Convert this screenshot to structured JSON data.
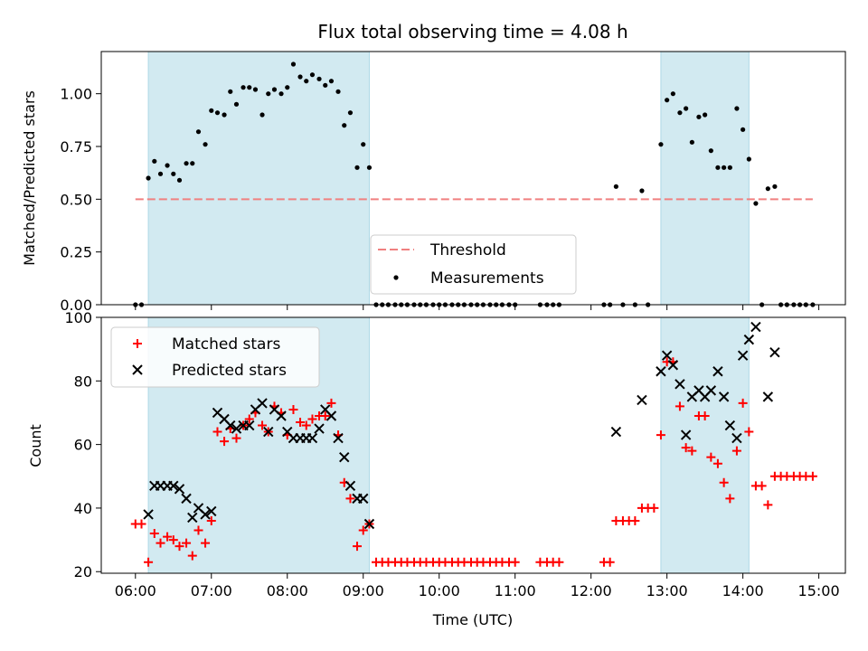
{
  "title": "Flux total observing time = 4.08 h",
  "x_axis": {
    "label": "Time (UTC)",
    "ticks": [
      {
        "value": 6,
        "label": "06:00"
      },
      {
        "value": 7,
        "label": "07:00"
      },
      {
        "value": 8,
        "label": "08:00"
      },
      {
        "value": 9,
        "label": "09:00"
      },
      {
        "value": 10,
        "label": "10:00"
      },
      {
        "value": 11,
        "label": "11:00"
      },
      {
        "value": 12,
        "label": "12:00"
      },
      {
        "value": 13,
        "label": "13:00"
      },
      {
        "value": 14,
        "label": "14:00"
      },
      {
        "value": 15,
        "label": "15:00"
      }
    ]
  },
  "colors": {
    "shade": "#add8e6",
    "threshold": "#f08080",
    "matched": "#ff0000",
    "predicted": "#000000",
    "measurement": "#000000"
  },
  "chart_data": [
    {
      "type": "scatter",
      "ylabel": "Matched/Predicted stars",
      "xlim": [
        5.55,
        15.35
      ],
      "ylim": [
        0,
        1.2
      ],
      "yticks": [
        {
          "value": 0,
          "label": "0.00"
        },
        {
          "value": 0.25,
          "label": "0.25"
        },
        {
          "value": 0.5,
          "label": "0.50"
        },
        {
          "value": 0.75,
          "label": "0.75"
        },
        {
          "value": 1.0,
          "label": "1.00"
        }
      ],
      "shaded_intervals": [
        [
          6.17,
          9.08
        ],
        [
          12.92,
          14.08
        ]
      ],
      "threshold": {
        "name": "Threshold",
        "y": 0.5,
        "x": [
          6.0,
          14.92
        ]
      },
      "legend": {
        "placement": "lower center",
        "entries": [
          "Threshold",
          "Measurements"
        ]
      },
      "series": [
        {
          "name": "Measurements",
          "marker": "dot",
          "points": [
            [
              6.0,
              0
            ],
            [
              6.08,
              0
            ],
            [
              6.17,
              0.6
            ],
            [
              6.25,
              0.68
            ],
            [
              6.33,
              0.62
            ],
            [
              6.42,
              0.66
            ],
            [
              6.5,
              0.62
            ],
            [
              6.58,
              0.59
            ],
            [
              6.67,
              0.67
            ],
            [
              6.75,
              0.67
            ],
            [
              6.83,
              0.82
            ],
            [
              6.92,
              0.76
            ],
            [
              7.0,
              0.92
            ],
            [
              7.08,
              0.91
            ],
            [
              7.17,
              0.9
            ],
            [
              7.25,
              1.01
            ],
            [
              7.33,
              0.95
            ],
            [
              7.42,
              1.03
            ],
            [
              7.5,
              1.03
            ],
            [
              7.58,
              1.02
            ],
            [
              7.67,
              0.9
            ],
            [
              7.75,
              1.0
            ],
            [
              7.83,
              1.02
            ],
            [
              7.92,
              1.0
            ],
            [
              8.0,
              1.03
            ],
            [
              8.08,
              1.14
            ],
            [
              8.17,
              1.08
            ],
            [
              8.25,
              1.06
            ],
            [
              8.33,
              1.09
            ],
            [
              8.42,
              1.07
            ],
            [
              8.5,
              1.04
            ],
            [
              8.58,
              1.06
            ],
            [
              8.67,
              1.01
            ],
            [
              8.75,
              0.85
            ],
            [
              8.83,
              0.91
            ],
            [
              8.92,
              0.65
            ],
            [
              9.0,
              0.76
            ],
            [
              9.08,
              0.65
            ],
            [
              9.17,
              0
            ],
            [
              9.25,
              0
            ],
            [
              9.33,
              0
            ],
            [
              9.42,
              0
            ],
            [
              9.5,
              0
            ],
            [
              9.58,
              0
            ],
            [
              9.67,
              0
            ],
            [
              9.75,
              0
            ],
            [
              9.83,
              0
            ],
            [
              9.92,
              0
            ],
            [
              10.0,
              0
            ],
            [
              10.08,
              0
            ],
            [
              10.17,
              0
            ],
            [
              10.25,
              0
            ],
            [
              10.33,
              0
            ],
            [
              10.42,
              0
            ],
            [
              10.5,
              0
            ],
            [
              10.58,
              0
            ],
            [
              10.67,
              0
            ],
            [
              10.75,
              0
            ],
            [
              10.83,
              0
            ],
            [
              10.92,
              0
            ],
            [
              11.0,
              0
            ],
            [
              11.33,
              0
            ],
            [
              11.42,
              0
            ],
            [
              11.5,
              0
            ],
            [
              11.58,
              0
            ],
            [
              12.17,
              0
            ],
            [
              12.25,
              0
            ],
            [
              12.33,
              0.56
            ],
            [
              12.42,
              0
            ],
            [
              12.58,
              0
            ],
            [
              12.67,
              0.54
            ],
            [
              12.75,
              0
            ],
            [
              12.92,
              0.76
            ],
            [
              13.0,
              0.97
            ],
            [
              13.08,
              1.0
            ],
            [
              13.17,
              0.91
            ],
            [
              13.25,
              0.93
            ],
            [
              13.33,
              0.77
            ],
            [
              13.42,
              0.89
            ],
            [
              13.5,
              0.9
            ],
            [
              13.58,
              0.73
            ],
            [
              13.67,
              0.65
            ],
            [
              13.75,
              0.65
            ],
            [
              13.83,
              0.65
            ],
            [
              13.92,
              0.93
            ],
            [
              14.0,
              0.83
            ],
            [
              14.08,
              0.69
            ],
            [
              14.17,
              0.48
            ],
            [
              14.25,
              0
            ],
            [
              14.33,
              0.55
            ],
            [
              14.42,
              0.56
            ],
            [
              14.5,
              0
            ],
            [
              14.58,
              0
            ],
            [
              14.67,
              0
            ],
            [
              14.75,
              0
            ],
            [
              14.83,
              0
            ],
            [
              14.92,
              0
            ]
          ]
        }
      ]
    },
    {
      "type": "scatter",
      "xlabel": "Time (UTC)",
      "ylabel": "Count",
      "xlim": [
        5.55,
        15.35
      ],
      "ylim": [
        19.5,
        100
      ],
      "yticks": [
        {
          "value": 20,
          "label": "20"
        },
        {
          "value": 40,
          "label": "40"
        },
        {
          "value": 60,
          "label": "60"
        },
        {
          "value": 80,
          "label": "80"
        },
        {
          "value": 100,
          "label": "100"
        }
      ],
      "shaded_intervals": [
        [
          6.17,
          9.08
        ],
        [
          12.92,
          14.08
        ]
      ],
      "legend": {
        "placement": "upper left",
        "entries": [
          "Matched stars",
          "Predicted stars"
        ]
      },
      "series": [
        {
          "name": "Matched stars",
          "marker": "plus",
          "points": [
            [
              6.0,
              35
            ],
            [
              6.08,
              35
            ],
            [
              6.17,
              23
            ],
            [
              6.25,
              32
            ],
            [
              6.33,
              29
            ],
            [
              6.42,
              31
            ],
            [
              6.5,
              30
            ],
            [
              6.58,
              28
            ],
            [
              6.67,
              29
            ],
            [
              6.75,
              25
            ],
            [
              6.83,
              33
            ],
            [
              6.92,
              29
            ],
            [
              7.0,
              36
            ],
            [
              7.08,
              64
            ],
            [
              7.17,
              61
            ],
            [
              7.25,
              65
            ],
            [
              7.33,
              62
            ],
            [
              7.42,
              66
            ],
            [
              7.5,
              68
            ],
            [
              7.58,
              70
            ],
            [
              7.67,
              66
            ],
            [
              7.75,
              64
            ],
            [
              7.83,
              72
            ],
            [
              7.92,
              70
            ],
            [
              8.0,
              63
            ],
            [
              8.08,
              71
            ],
            [
              8.17,
              67
            ],
            [
              8.25,
              66
            ],
            [
              8.33,
              68
            ],
            [
              8.42,
              69
            ],
            [
              8.5,
              69
            ],
            [
              8.58,
              73
            ],
            [
              8.67,
              63
            ],
            [
              8.75,
              48
            ],
            [
              8.83,
              43
            ],
            [
              8.92,
              28
            ],
            [
              9.0,
              33
            ],
            [
              9.08,
              35
            ],
            [
              9.17,
              23
            ],
            [
              9.25,
              23
            ],
            [
              9.33,
              23
            ],
            [
              9.42,
              23
            ],
            [
              9.5,
              23
            ],
            [
              9.58,
              23
            ],
            [
              9.67,
              23
            ],
            [
              9.75,
              23
            ],
            [
              9.83,
              23
            ],
            [
              9.92,
              23
            ],
            [
              10.0,
              23
            ],
            [
              10.08,
              23
            ],
            [
              10.17,
              23
            ],
            [
              10.25,
              23
            ],
            [
              10.33,
              23
            ],
            [
              10.42,
              23
            ],
            [
              10.5,
              23
            ],
            [
              10.58,
              23
            ],
            [
              10.67,
              23
            ],
            [
              10.75,
              23
            ],
            [
              10.83,
              23
            ],
            [
              10.92,
              23
            ],
            [
              11.0,
              23
            ],
            [
              11.33,
              23
            ],
            [
              11.42,
              23
            ],
            [
              11.5,
              23
            ],
            [
              11.58,
              23
            ],
            [
              12.17,
              23
            ],
            [
              12.25,
              23
            ],
            [
              12.33,
              36
            ],
            [
              12.42,
              36
            ],
            [
              12.5,
              36
            ],
            [
              12.58,
              36
            ],
            [
              12.67,
              40
            ],
            [
              12.75,
              40
            ],
            [
              12.83,
              40
            ],
            [
              12.92,
              63
            ],
            [
              13.0,
              86
            ],
            [
              13.08,
              86
            ],
            [
              13.17,
              72
            ],
            [
              13.25,
              59
            ],
            [
              13.33,
              58
            ],
            [
              13.42,
              69
            ],
            [
              13.5,
              69
            ],
            [
              13.58,
              56
            ],
            [
              13.67,
              54
            ],
            [
              13.75,
              48
            ],
            [
              13.83,
              43
            ],
            [
              13.92,
              58
            ],
            [
              14.0,
              73
            ],
            [
              14.08,
              64
            ],
            [
              14.17,
              47
            ],
            [
              14.25,
              47
            ],
            [
              14.33,
              41
            ],
            [
              14.42,
              50
            ],
            [
              14.5,
              50
            ],
            [
              14.58,
              50
            ],
            [
              14.67,
              50
            ],
            [
              14.75,
              50
            ],
            [
              14.83,
              50
            ],
            [
              14.92,
              50
            ]
          ]
        },
        {
          "name": "Predicted stars",
          "marker": "x",
          "points": [
            [
              6.17,
              38
            ],
            [
              6.25,
              47
            ],
            [
              6.33,
              47
            ],
            [
              6.42,
              47
            ],
            [
              6.5,
              47
            ],
            [
              6.58,
              46
            ],
            [
              6.67,
              43
            ],
            [
              6.75,
              37
            ],
            [
              6.83,
              40
            ],
            [
              6.92,
              38
            ],
            [
              7.0,
              39
            ],
            [
              7.08,
              70
            ],
            [
              7.17,
              68
            ],
            [
              7.25,
              66
            ],
            [
              7.33,
              65
            ],
            [
              7.42,
              66
            ],
            [
              7.5,
              66
            ],
            [
              7.58,
              71
            ],
            [
              7.67,
              73
            ],
            [
              7.75,
              64
            ],
            [
              7.83,
              71
            ],
            [
              7.92,
              69
            ],
            [
              8.0,
              64
            ],
            [
              8.08,
              62
            ],
            [
              8.17,
              62
            ],
            [
              8.25,
              62
            ],
            [
              8.33,
              62
            ],
            [
              8.42,
              65
            ],
            [
              8.5,
              71
            ],
            [
              8.58,
              69
            ],
            [
              8.67,
              62
            ],
            [
              8.75,
              56
            ],
            [
              8.83,
              47
            ],
            [
              8.92,
              43
            ],
            [
              9.0,
              43
            ],
            [
              9.08,
              35
            ],
            [
              12.33,
              64
            ],
            [
              12.67,
              74
            ],
            [
              12.92,
              83
            ],
            [
              13.0,
              88
            ],
            [
              13.08,
              85
            ],
            [
              13.17,
              79
            ],
            [
              13.25,
              63
            ],
            [
              13.33,
              75
            ],
            [
              13.42,
              77
            ],
            [
              13.5,
              75
            ],
            [
              13.58,
              77
            ],
            [
              13.67,
              83
            ],
            [
              13.75,
              75
            ],
            [
              13.83,
              66
            ],
            [
              13.92,
              62
            ],
            [
              14.0,
              88
            ],
            [
              14.08,
              93
            ],
            [
              14.17,
              97
            ],
            [
              14.33,
              75
            ],
            [
              14.42,
              89
            ]
          ]
        }
      ]
    }
  ]
}
